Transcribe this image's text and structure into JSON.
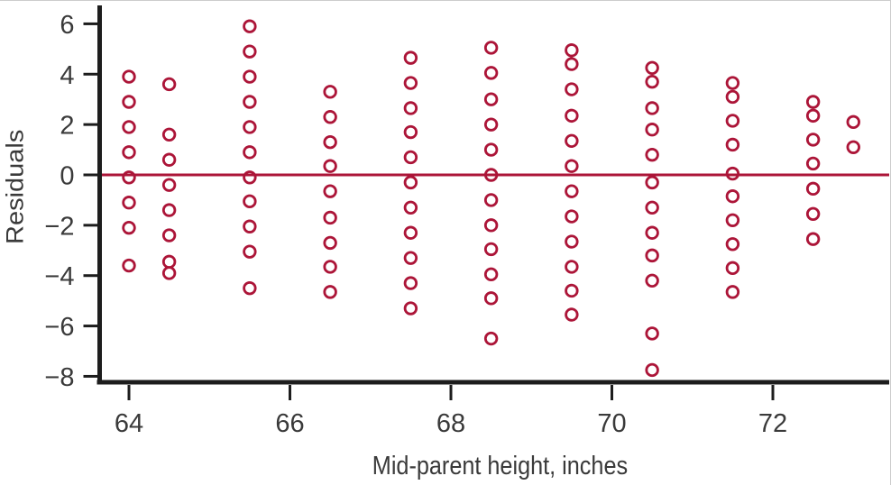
{
  "figure": {
    "background": "#ffffff",
    "frame_border_color": "#cccccc"
  },
  "chart_data": {
    "type": "scatter",
    "title": "",
    "xlabel": "Mid-parent height, inches",
    "ylabel": "Residuals",
    "xlim": [
      63.6,
      73.45
    ],
    "ylim": [
      -8.25,
      6.7
    ],
    "x_ticks": [
      64,
      66,
      68,
      70,
      72
    ],
    "x_tick_labels": [
      "64",
      "66",
      "68",
      "70",
      "72"
    ],
    "y_ticks": [
      6,
      4,
      2,
      0,
      -2,
      -4,
      -6,
      -8
    ],
    "y_tick_labels": [
      "6",
      "4",
      "2",
      "0",
      "−2",
      "−4",
      "−6",
      "−8"
    ],
    "grid": false,
    "legend": "none",
    "axis_color": "#1d1d1d",
    "text_color": "#3a3a3a",
    "marker": {
      "shape": "open-circle",
      "radius": 6.3,
      "stroke_width": 2.8,
      "color": "#ac1538"
    },
    "zero_line": {
      "y": 0,
      "color": "#ac1538",
      "width": 3
    },
    "columns": [
      {
        "x": 64,
        "residuals": [
          3.9,
          2.9,
          1.9,
          0.9,
          -0.1,
          -1.1,
          -2.1,
          -3.6
        ]
      },
      {
        "x": 64.5,
        "residuals": [
          3.6,
          1.6,
          0.6,
          -0.4,
          -1.4,
          -2.4,
          -3.45,
          -3.9
        ]
      },
      {
        "x": 65.5,
        "residuals": [
          5.9,
          4.9,
          3.9,
          2.9,
          1.9,
          0.9,
          -0.1,
          -1.05,
          -2.05,
          -3.05,
          -4.5
        ]
      },
      {
        "x": 66.5,
        "residuals": [
          3.3,
          2.3,
          1.3,
          0.35,
          -0.65,
          -1.7,
          -2.7,
          -3.65,
          -4.65
        ]
      },
      {
        "x": 67.5,
        "residuals": [
          4.65,
          3.65,
          2.65,
          1.7,
          0.7,
          -0.3,
          -1.3,
          -2.3,
          -3.3,
          -4.3,
          -5.3
        ]
      },
      {
        "x": 68.5,
        "residuals": [
          5.05,
          4.05,
          3.0,
          2.0,
          1.0,
          0.0,
          -1.0,
          -2.0,
          -2.95,
          -3.95,
          -4.9,
          -6.5
        ]
      },
      {
        "x": 69.5,
        "residuals": [
          4.95,
          4.4,
          3.4,
          2.35,
          1.35,
          0.35,
          -0.65,
          -1.65,
          -2.65,
          -3.65,
          -4.6,
          -5.55
        ]
      },
      {
        "x": 70.5,
        "residuals": [
          4.25,
          3.7,
          2.65,
          1.8,
          0.8,
          -0.3,
          -1.3,
          -2.3,
          -3.2,
          -4.2,
          -6.3,
          -7.75
        ]
      },
      {
        "x": 71.5,
        "residuals": [
          3.65,
          3.1,
          2.15,
          1.2,
          0.05,
          -0.85,
          -1.8,
          -2.75,
          -3.7,
          -4.65
        ]
      },
      {
        "x": 72.5,
        "residuals": [
          2.9,
          2.35,
          1.4,
          0.45,
          -0.55,
          -1.55,
          -2.55
        ]
      },
      {
        "x": 73,
        "residuals": [
          2.1,
          1.1
        ]
      }
    ]
  }
}
